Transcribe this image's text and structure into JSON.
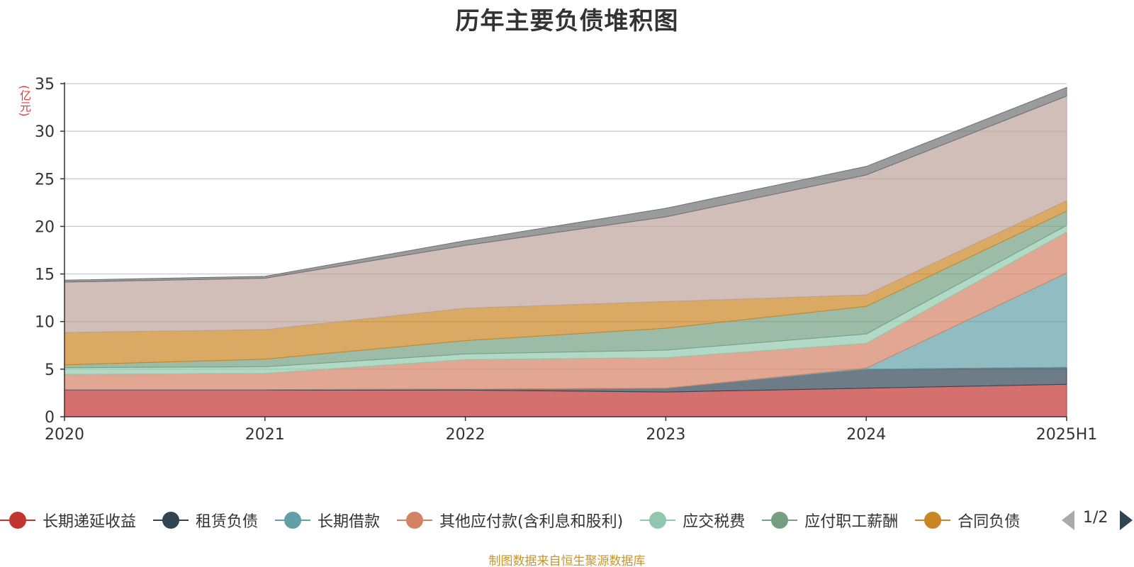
{
  "page": {
    "source_note": "制图数据来自恒生聚源数据库",
    "pager": {
      "current": "1/2"
    }
  },
  "chart_data": {
    "type": "area",
    "title": "历年主要负债堆积图",
    "ylabel": "(亿元)",
    "xlabel": "",
    "stacked": true,
    "ylim": [
      0,
      35
    ],
    "yticks": [
      0,
      5,
      10,
      15,
      20,
      25,
      30,
      35
    ],
    "grid": true,
    "legend_position": "bottom",
    "categories": [
      "2020",
      "2021",
      "2022",
      "2023",
      "2024",
      "2025H1"
    ],
    "series": [
      {
        "name": "长期递延收益",
        "color": "#c23531",
        "values": [
          2.8,
          2.8,
          2.8,
          2.6,
          3.0,
          3.4
        ]
      },
      {
        "name": "租赁负债",
        "color": "#2f4554",
        "values": [
          0.05,
          0.05,
          0.1,
          0.4,
          2.0,
          1.8
        ]
      },
      {
        "name": "长期借款",
        "color": "#61a0a8",
        "values": [
          0,
          0,
          0,
          0,
          0.1,
          9.9
        ]
      },
      {
        "name": "其他应付款(含利息和股利)",
        "color": "#d48265",
        "values": [
          1.6,
          1.7,
          3.1,
          3.2,
          2.6,
          4.3
        ]
      },
      {
        "name": "应交税费",
        "color": "#91c7ae",
        "values": [
          0.7,
          0.7,
          0.6,
          0.8,
          1.0,
          0.7
        ]
      },
      {
        "name": "应付职工薪酬",
        "color": "#749f83",
        "values": [
          0.3,
          0.8,
          1.4,
          2.3,
          2.9,
          1.5
        ]
      },
      {
        "name": "合同负债",
        "color": "#ca8622",
        "values": [
          3.4,
          3.1,
          3.4,
          2.8,
          1.2,
          1.1
        ]
      },
      {
        "name": "",
        "color": "#bda29a",
        "values": [
          5.3,
          5.4,
          6.6,
          8.9,
          12.6,
          11.0
        ]
      },
      {
        "name": "",
        "color": "#6e7074",
        "values": [
          0.2,
          0.2,
          0.5,
          0.9,
          0.9,
          0.9
        ]
      }
    ]
  }
}
